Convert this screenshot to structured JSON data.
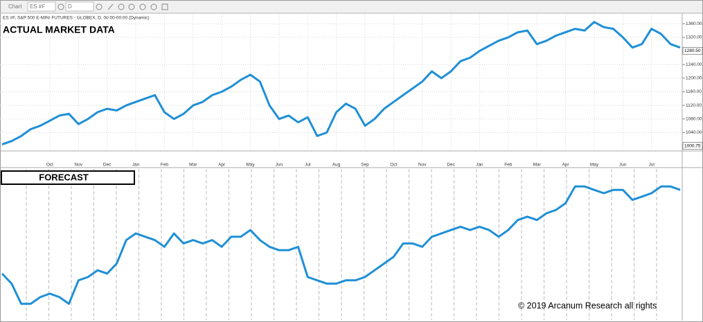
{
  "window": {
    "title": "Chart",
    "symbol": "ES #F",
    "interval": "D"
  },
  "footer": "© 2019 Arcanum Research all rights",
  "chart_data": [
    {
      "type": "line",
      "title": "ACTUAL MARKET DATA",
      "subtitle": "ES #F, S&P 500 E-MINI FUTURES - GLOBEX, D, 00:00-00:00 (Dynamic)",
      "color": "#1f8fd6",
      "categories": [
        null,
        null,
        null,
        null,
        null,
        "Oct",
        null,
        null,
        "Nov",
        null,
        null,
        "Dec",
        null,
        null,
        "Jan",
        null,
        null,
        "Feb",
        null,
        null,
        "Mar",
        null,
        null,
        "Apr",
        null,
        null,
        "May",
        null,
        null,
        "Jun",
        null,
        null,
        "Jul",
        null,
        null,
        "Aug",
        null,
        null,
        "Sep",
        null,
        null,
        "Oct",
        null,
        null,
        "Nov",
        null,
        null,
        "Dec",
        null,
        null,
        "Jan",
        null,
        null,
        "Feb",
        null,
        null,
        "Mar",
        null,
        null,
        "Apr",
        null,
        null,
        "May",
        null,
        null,
        "Jun",
        null,
        null,
        "Jul",
        null,
        null,
        null
      ],
      "values": [
        1005,
        1015,
        1030,
        1050,
        1060,
        1075,
        1090,
        1095,
        1065,
        1080,
        1100,
        1110,
        1105,
        1120,
        1130,
        1140,
        1150,
        1100,
        1080,
        1095,
        1120,
        1130,
        1150,
        1160,
        1175,
        1195,
        1210,
        1190,
        1120,
        1080,
        1090,
        1070,
        1085,
        1030,
        1040,
        1100,
        1125,
        1110,
        1060,
        1080,
        1110,
        1130,
        1150,
        1170,
        1190,
        1220,
        1200,
        1220,
        1250,
        1260,
        1280,
        1295,
        1310,
        1320,
        1335,
        1340,
        1300,
        1310,
        1325,
        1335,
        1345,
        1340,
        1365,
        1350,
        1345,
        1320,
        1290,
        1300,
        1345,
        1330,
        1300,
        1290
      ],
      "ylim": [
        990,
        1385
      ],
      "yticks": [
        {
          "value": 1040,
          "label": "1040.00"
        },
        {
          "value": 1080,
          "label": "1080.00"
        },
        {
          "value": 1120,
          "label": "1120.00"
        },
        {
          "value": 1160,
          "label": "1160.00"
        },
        {
          "value": 1200,
          "label": "1200.00"
        },
        {
          "value": 1240,
          "label": "1240.00"
        },
        {
          "value": 1320,
          "label": "1320.00"
        },
        {
          "value": 1360,
          "label": "1360.00"
        }
      ],
      "markers": [
        {
          "value": 1280.5,
          "label": "1280.50"
        },
        1000.75
      ],
      "grid": true
    },
    {
      "type": "line",
      "title": "FORECAST",
      "color": "#1f8fd6",
      "values": [
        65,
        50,
        20,
        20,
        30,
        35,
        30,
        20,
        55,
        60,
        70,
        65,
        80,
        115,
        125,
        120,
        115,
        105,
        125,
        110,
        115,
        110,
        115,
        105,
        120,
        120,
        130,
        115,
        105,
        100,
        100,
        105,
        60,
        55,
        50,
        50,
        55,
        55,
        60,
        70,
        80,
        90,
        110,
        110,
        105,
        120,
        125,
        130,
        135,
        130,
        135,
        130,
        120,
        130,
        145,
        150,
        145,
        155,
        160,
        170,
        195,
        195,
        190,
        185,
        190,
        190,
        175,
        180,
        185,
        195,
        195,
        190
      ],
      "ylim": [
        0,
        215
      ]
    }
  ]
}
